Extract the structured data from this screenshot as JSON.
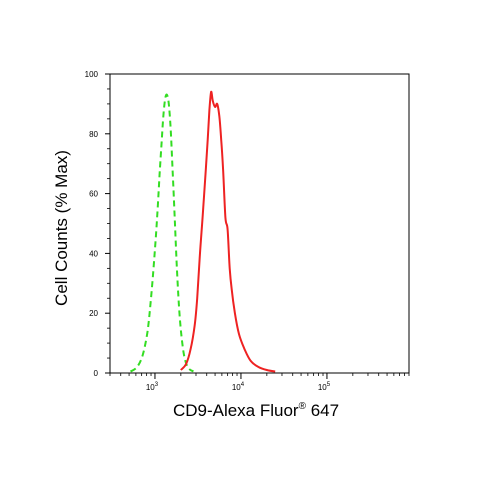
{
  "chart_data": {
    "type": "line",
    "title": "",
    "xlabel": "CD9-Alexa Fluor",
    "xlabel_sup": "®",
    "xlabel_suffix": " 647",
    "ylabel": "Cell Counts (% Max)",
    "x_scale": "log",
    "xlim": [
      300,
      900000
    ],
    "ylim": [
      0,
      100
    ],
    "y_ticks": [
      0,
      20,
      40,
      60,
      80,
      100
    ],
    "x_tick_labels": [
      {
        "base": "10",
        "exp": "3",
        "value": 1000
      },
      {
        "base": "10",
        "exp": "4",
        "value": 10000
      },
      {
        "base": "10",
        "exp": "5",
        "value": 100000
      }
    ],
    "grid": false,
    "legend": "none",
    "series": [
      {
        "color": "#33dd22",
        "style": "dashed",
        "x": [
          520,
          620,
          720,
          820,
          900,
          980,
          1060,
          1130,
          1200,
          1260,
          1320,
          1380,
          1450,
          1520,
          1590,
          1680,
          1800,
          1950,
          2150,
          2400,
          2800
        ],
        "y": [
          0.5,
          2,
          6,
          14,
          25,
          38,
          52,
          66,
          78,
          87,
          92,
          93,
          90,
          82,
          70,
          55,
          35,
          18,
          7,
          2,
          0.5
        ]
      },
      {
        "color": "#ee2222",
        "style": "solid",
        "x": [
          2000,
          2300,
          2600,
          2900,
          3100,
          3300,
          3500,
          3700,
          3900,
          4100,
          4300,
          4500,
          4700,
          5000,
          5300,
          5600,
          5900,
          6200,
          6600,
          7000,
          7400,
          7800,
          8500,
          9500,
          11000,
          13000,
          16000,
          20000,
          25000
        ],
        "y": [
          1,
          3,
          8,
          16,
          25,
          38,
          48,
          58,
          68,
          78,
          88,
          94,
          91,
          89,
          90,
          86,
          78,
          68,
          52,
          48,
          35,
          28,
          20,
          13,
          8,
          4,
          2,
          1,
          0.5
        ]
      }
    ]
  }
}
